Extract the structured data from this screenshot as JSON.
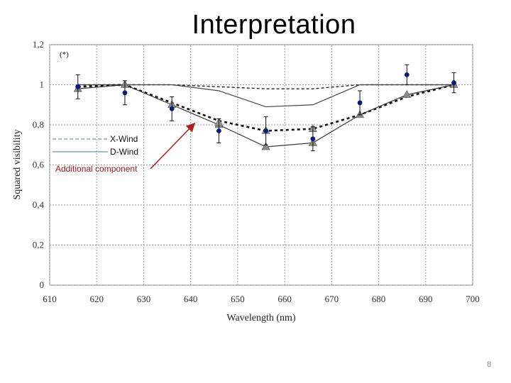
{
  "slide": {
    "title": "Interpretation",
    "page_number": "8"
  },
  "chart_data": {
    "type": "line",
    "title": "",
    "xlabel": "Wavelength (nm)",
    "ylabel": "Squared visibility",
    "xlim": [
      610,
      700
    ],
    "ylim": [
      0,
      1.2
    ],
    "x_ticks": [
      "610",
      "620",
      "630",
      "640",
      "650",
      "660",
      "670",
      "680",
      "690",
      "700"
    ],
    "y_ticks": [
      "0",
      "0,2",
      "0,4",
      "0,6",
      "0,8",
      "1",
      "1,2"
    ],
    "grid": true,
    "panel_label": "(*)",
    "legend": [
      {
        "label": "X-Wind",
        "style": "dashed"
      },
      {
        "label": "D-Wind",
        "style": "solid"
      }
    ],
    "annotation": {
      "text": "Additional component",
      "arrow_to": [
        641,
        0.81
      ],
      "color": "#b22222"
    },
    "series": [
      {
        "name": "X-Wind",
        "style": "dashed",
        "color": "#222222",
        "x": [
          616,
          626,
          636,
          646,
          656,
          666,
          676,
          686,
          696
        ],
        "y": [
          1.0,
          1.0,
          1.0,
          0.99,
          0.98,
          0.98,
          1.0,
          1.0,
          1.0
        ]
      },
      {
        "name": "D-Wind",
        "style": "solid",
        "color": "#444444",
        "x": [
          616,
          626,
          636,
          646,
          656,
          666,
          676,
          686,
          696
        ],
        "y": [
          1.0,
          1.0,
          1.0,
          0.97,
          0.89,
          0.9,
          1.0,
          1.0,
          1.0
        ]
      },
      {
        "style": "dotted-bold",
        "color": "#111111",
        "x": [
          616,
          626,
          636,
          646,
          656,
          666,
          676,
          686,
          696
        ],
        "y": [
          0.99,
          1.0,
          0.91,
          0.82,
          0.77,
          0.78,
          0.85,
          0.94,
          1.0
        ]
      },
      {
        "style": "solid",
        "color": "#333333",
        "marker": "triangle",
        "x": [
          616,
          626,
          636,
          646,
          656,
          666,
          676,
          686,
          696
        ],
        "y": [
          0.98,
          1.0,
          0.9,
          0.8,
          0.69,
          0.71,
          0.85,
          0.95,
          1.0
        ]
      },
      {
        "style": "markers",
        "color": "#9a9a9a",
        "marker": "triangle",
        "x": [
          646,
          656,
          666
        ],
        "y": [
          0.81,
          0.77,
          0.78
        ]
      }
    ],
    "measurements": {
      "color": "#0a1a7a",
      "x": [
        616,
        626,
        636,
        646,
        656,
        666,
        676,
        686,
        696
      ],
      "y": [
        0.99,
        0.96,
        0.88,
        0.77,
        0.77,
        0.73,
        0.91,
        1.05,
        1.01
      ],
      "err": [
        0.06,
        0.06,
        0.06,
        0.06,
        0.07,
        0.06,
        0.06,
        0.05,
        0.05
      ]
    },
    "colors": {
      "measurement": "#0a1a7a",
      "marker_fill": "#8a8a8a",
      "annotation": "#b22222",
      "legend_line": "#4a7ab0"
    }
  }
}
